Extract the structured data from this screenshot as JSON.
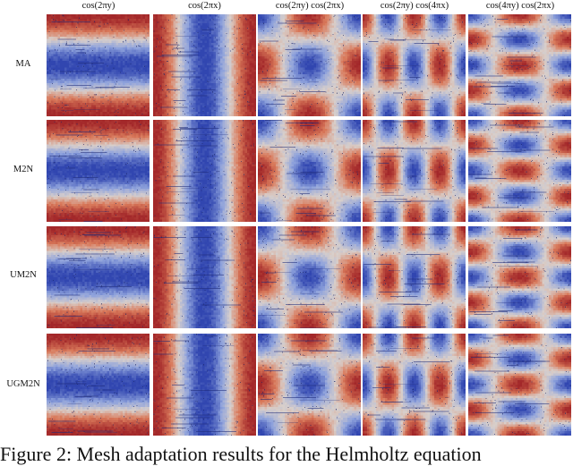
{
  "figure": {
    "columns": [
      {
        "label": "cos(2πy)",
        "function": "cos2y"
      },
      {
        "label": "cos(2πx)",
        "function": "cos2x"
      },
      {
        "label": "cos(2πy) cos(2πx)",
        "function": "cos2y_cos2x"
      },
      {
        "label": "cos(2πy) cos(4πx)",
        "function": "cos2y_cos4x"
      },
      {
        "label": "cos(4πy) cos(2πx)",
        "function": "cos4y_cos2x"
      }
    ],
    "rows": [
      {
        "label": "MA"
      },
      {
        "label": "M2N"
      },
      {
        "label": "UM2N"
      },
      {
        "label": "UGM2N"
      }
    ],
    "colormap": {
      "name": "coolwarm",
      "high": "#a3282a",
      "mid_high": "#d9795a",
      "neutral": "#d8cfcb",
      "mid_low": "#8ea2dc",
      "low": "#3146b0"
    },
    "caption": "Figure 2: Mesh adaptation results for the Helmholtz equation"
  }
}
